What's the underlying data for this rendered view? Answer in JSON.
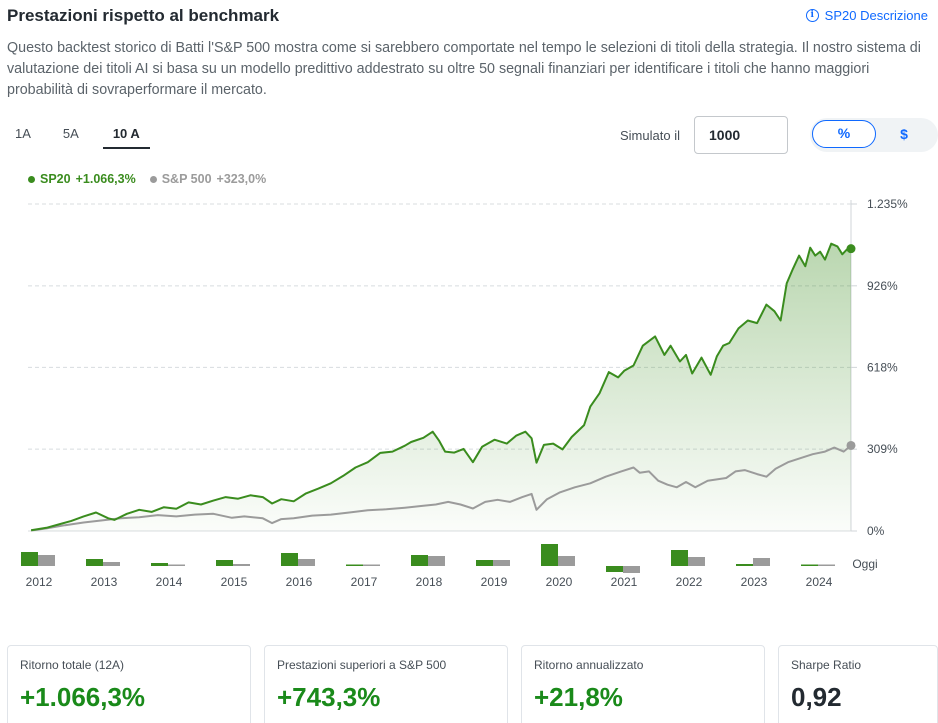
{
  "header": {
    "title": "Prestazioni rispetto al benchmark",
    "link_label": "SP20 Descrizione",
    "description": "Questo backtest storico di Batti l'S&P 500 mostra come si sarebbero comportate nel tempo le selezioni di titoli della strategia. Il nostro sistema di valutazione dei titoli AI si basa su un modello predittivo addestrato su oltre 50 segnali finanziari per identificare i titoli che hanno maggiori probabilità di sovraperformare il mercato."
  },
  "tabs": [
    {
      "label": "1A",
      "active": false
    },
    {
      "label": "5A",
      "active": false
    },
    {
      "label": "10 A",
      "active": true
    }
  ],
  "simulation": {
    "label": "Simulato il",
    "value": "1000"
  },
  "toggle": {
    "percent_label": "%",
    "dollar_label": "$",
    "selected": "%"
  },
  "colors": {
    "strategy": "#3a8c1e",
    "benchmark": "#9b9b9b",
    "accent": "#0f69ff"
  },
  "legend": [
    {
      "name": "SP20",
      "value": "+1.066,3%",
      "color": "#3a8c1e"
    },
    {
      "name": "S&P 500",
      "value": "+323,0%",
      "color": "#9b9b9b"
    }
  ],
  "chart_data": {
    "type": "line",
    "y_ticks": [
      {
        "label": "1.235%",
        "value": 1235
      },
      {
        "label": "926%",
        "value": 926
      },
      {
        "label": "618%",
        "value": 618
      },
      {
        "label": "309%",
        "value": 309
      },
      {
        "label": "0%",
        "value": 0
      }
    ],
    "ylim": [
      0,
      1235
    ],
    "xlim": [
      2011.7,
      2025.02
    ],
    "x_tick_labels": [
      "2012",
      "2013",
      "2014",
      "2015",
      "2016",
      "2017",
      "2018",
      "2019",
      "2020",
      "2021",
      "2022",
      "2023",
      "2024",
      "Oggi"
    ],
    "grid": true,
    "series": [
      {
        "name": "SP20",
        "color": "#3a8c1e",
        "points": [
          [
            2011.75,
            3
          ],
          [
            2012,
            12
          ],
          [
            2012.2,
            25
          ],
          [
            2012.4,
            38
          ],
          [
            2012.6,
            55
          ],
          [
            2012.8,
            70
          ],
          [
            2013,
            48
          ],
          [
            2013.1,
            42
          ],
          [
            2013.3,
            65
          ],
          [
            2013.5,
            80
          ],
          [
            2013.7,
            72
          ],
          [
            2013.9,
            90
          ],
          [
            2014.1,
            84
          ],
          [
            2014.3,
            108
          ],
          [
            2014.5,
            100
          ],
          [
            2014.7,
            115
          ],
          [
            2014.9,
            128
          ],
          [
            2015.1,
            122
          ],
          [
            2015.3,
            135
          ],
          [
            2015.5,
            128
          ],
          [
            2015.65,
            104
          ],
          [
            2015.8,
            120
          ],
          [
            2016,
            112
          ],
          [
            2016.2,
            142
          ],
          [
            2016.4,
            160
          ],
          [
            2016.6,
            180
          ],
          [
            2016.8,
            208
          ],
          [
            2017,
            240
          ],
          [
            2017.2,
            260
          ],
          [
            2017.4,
            295
          ],
          [
            2017.6,
            300
          ],
          [
            2017.8,
            322
          ],
          [
            2017.9,
            336
          ],
          [
            2018.1,
            352
          ],
          [
            2018.25,
            375
          ],
          [
            2018.35,
            342
          ],
          [
            2018.45,
            300
          ],
          [
            2018.6,
            296
          ],
          [
            2018.75,
            310
          ],
          [
            2018.9,
            260
          ],
          [
            2019.05,
            318
          ],
          [
            2019.25,
            345
          ],
          [
            2019.45,
            330
          ],
          [
            2019.6,
            360
          ],
          [
            2019.75,
            375
          ],
          [
            2019.85,
            350
          ],
          [
            2019.93,
            258
          ],
          [
            2020.05,
            325
          ],
          [
            2020.2,
            330
          ],
          [
            2020.35,
            308
          ],
          [
            2020.5,
            355
          ],
          [
            2020.7,
            400
          ],
          [
            2020.8,
            470
          ],
          [
            2020.95,
            520
          ],
          [
            2021.1,
            600
          ],
          [
            2021.25,
            580
          ],
          [
            2021.35,
            605
          ],
          [
            2021.5,
            625
          ],
          [
            2021.65,
            700
          ],
          [
            2021.85,
            735
          ],
          [
            2022.0,
            665
          ],
          [
            2022.1,
            700
          ],
          [
            2022.25,
            640
          ],
          [
            2022.35,
            665
          ],
          [
            2022.45,
            595
          ],
          [
            2022.6,
            655
          ],
          [
            2022.75,
            590
          ],
          [
            2022.85,
            660
          ],
          [
            2022.95,
            700
          ],
          [
            2023.05,
            710
          ],
          [
            2023.2,
            765
          ],
          [
            2023.35,
            795
          ],
          [
            2023.5,
            785
          ],
          [
            2023.65,
            855
          ],
          [
            2023.78,
            830
          ],
          [
            2023.88,
            795
          ],
          [
            2023.98,
            935
          ],
          [
            2024.08,
            990
          ],
          [
            2024.18,
            1040
          ],
          [
            2024.28,
            1000
          ],
          [
            2024.36,
            1070
          ],
          [
            2024.44,
            1040
          ],
          [
            2024.52,
            1055
          ],
          [
            2024.6,
            1025
          ],
          [
            2024.7,
            1085
          ],
          [
            2024.8,
            1075
          ],
          [
            2024.88,
            1045
          ],
          [
            2024.96,
            1065
          ],
          [
            2025.02,
            1066.3
          ]
        ]
      },
      {
        "name": "S&P 500",
        "color": "#9b9b9b",
        "points": [
          [
            2011.75,
            2
          ],
          [
            2012,
            10
          ],
          [
            2012.3,
            22
          ],
          [
            2012.6,
            32
          ],
          [
            2012.9,
            40
          ],
          [
            2013.2,
            48
          ],
          [
            2013.5,
            52
          ],
          [
            2013.8,
            60
          ],
          [
            2014.1,
            55
          ],
          [
            2014.4,
            62
          ],
          [
            2014.7,
            65
          ],
          [
            2015.0,
            50
          ],
          [
            2015.2,
            55
          ],
          [
            2015.5,
            48
          ],
          [
            2015.65,
            30
          ],
          [
            2015.8,
            45
          ],
          [
            2016,
            48
          ],
          [
            2016.3,
            58
          ],
          [
            2016.6,
            62
          ],
          [
            2016.9,
            70
          ],
          [
            2017.2,
            78
          ],
          [
            2017.5,
            82
          ],
          [
            2017.8,
            88
          ],
          [
            2018.1,
            95
          ],
          [
            2018.3,
            100
          ],
          [
            2018.5,
            110
          ],
          [
            2018.7,
            100
          ],
          [
            2018.9,
            85
          ],
          [
            2019.1,
            110
          ],
          [
            2019.3,
            118
          ],
          [
            2019.5,
            110
          ],
          [
            2019.7,
            128
          ],
          [
            2019.85,
            140
          ],
          [
            2019.93,
            80
          ],
          [
            2020.1,
            120
          ],
          [
            2020.3,
            145
          ],
          [
            2020.55,
            165
          ],
          [
            2020.8,
            180
          ],
          [
            2021.05,
            205
          ],
          [
            2021.3,
            225
          ],
          [
            2021.5,
            240
          ],
          [
            2021.6,
            220
          ],
          [
            2021.75,
            225
          ],
          [
            2021.9,
            190
          ],
          [
            2022.05,
            175
          ],
          [
            2022.2,
            165
          ],
          [
            2022.35,
            185
          ],
          [
            2022.5,
            165
          ],
          [
            2022.7,
            190
          ],
          [
            2022.85,
            195
          ],
          [
            2023.0,
            200
          ],
          [
            2023.15,
            225
          ],
          [
            2023.3,
            230
          ],
          [
            2023.5,
            215
          ],
          [
            2023.65,
            205
          ],
          [
            2023.8,
            235
          ],
          [
            2024.0,
            260
          ],
          [
            2024.2,
            275
          ],
          [
            2024.4,
            290
          ],
          [
            2024.6,
            300
          ],
          [
            2024.75,
            315
          ],
          [
            2024.9,
            300
          ],
          [
            2025.02,
            323
          ]
        ]
      }
    ],
    "annual_bars": [
      {
        "year": "2012",
        "sp20": 14,
        "sp500": 11
      },
      {
        "year": "2013",
        "sp20": 7,
        "sp500": 4
      },
      {
        "year": "2014",
        "sp20": 3,
        "sp500": 1
      },
      {
        "year": "2015",
        "sp20": 6,
        "sp500": 2
      },
      {
        "year": "2016",
        "sp20": 13,
        "sp500": 7
      },
      {
        "year": "2017",
        "sp20": 1,
        "sp500": 1
      },
      {
        "year": "2018",
        "sp20": 11,
        "sp500": 10
      },
      {
        "year": "2019",
        "sp20": 6,
        "sp500": 6
      },
      {
        "year": "2020",
        "sp20": 22,
        "sp500": 10
      },
      {
        "year": "2021",
        "sp20": -6,
        "sp500": -7
      },
      {
        "year": "2022",
        "sp20": 16,
        "sp500": 9
      },
      {
        "year": "2023",
        "sp20": 2,
        "sp500": 8
      },
      {
        "year": "2024",
        "sp20": 1,
        "sp500": 1
      }
    ]
  },
  "cards": [
    {
      "label": "Ritorno totale (12A)",
      "value": "+1.066,3%",
      "style": "green"
    },
    {
      "label": "Prestazioni superiori a S&P 500",
      "value": "+743,3%",
      "style": "green"
    },
    {
      "label": "Ritorno annualizzato",
      "value": "+21,8%",
      "style": "green"
    },
    {
      "label": "Sharpe Ratio",
      "value": "0,92",
      "style": "dark"
    }
  ]
}
